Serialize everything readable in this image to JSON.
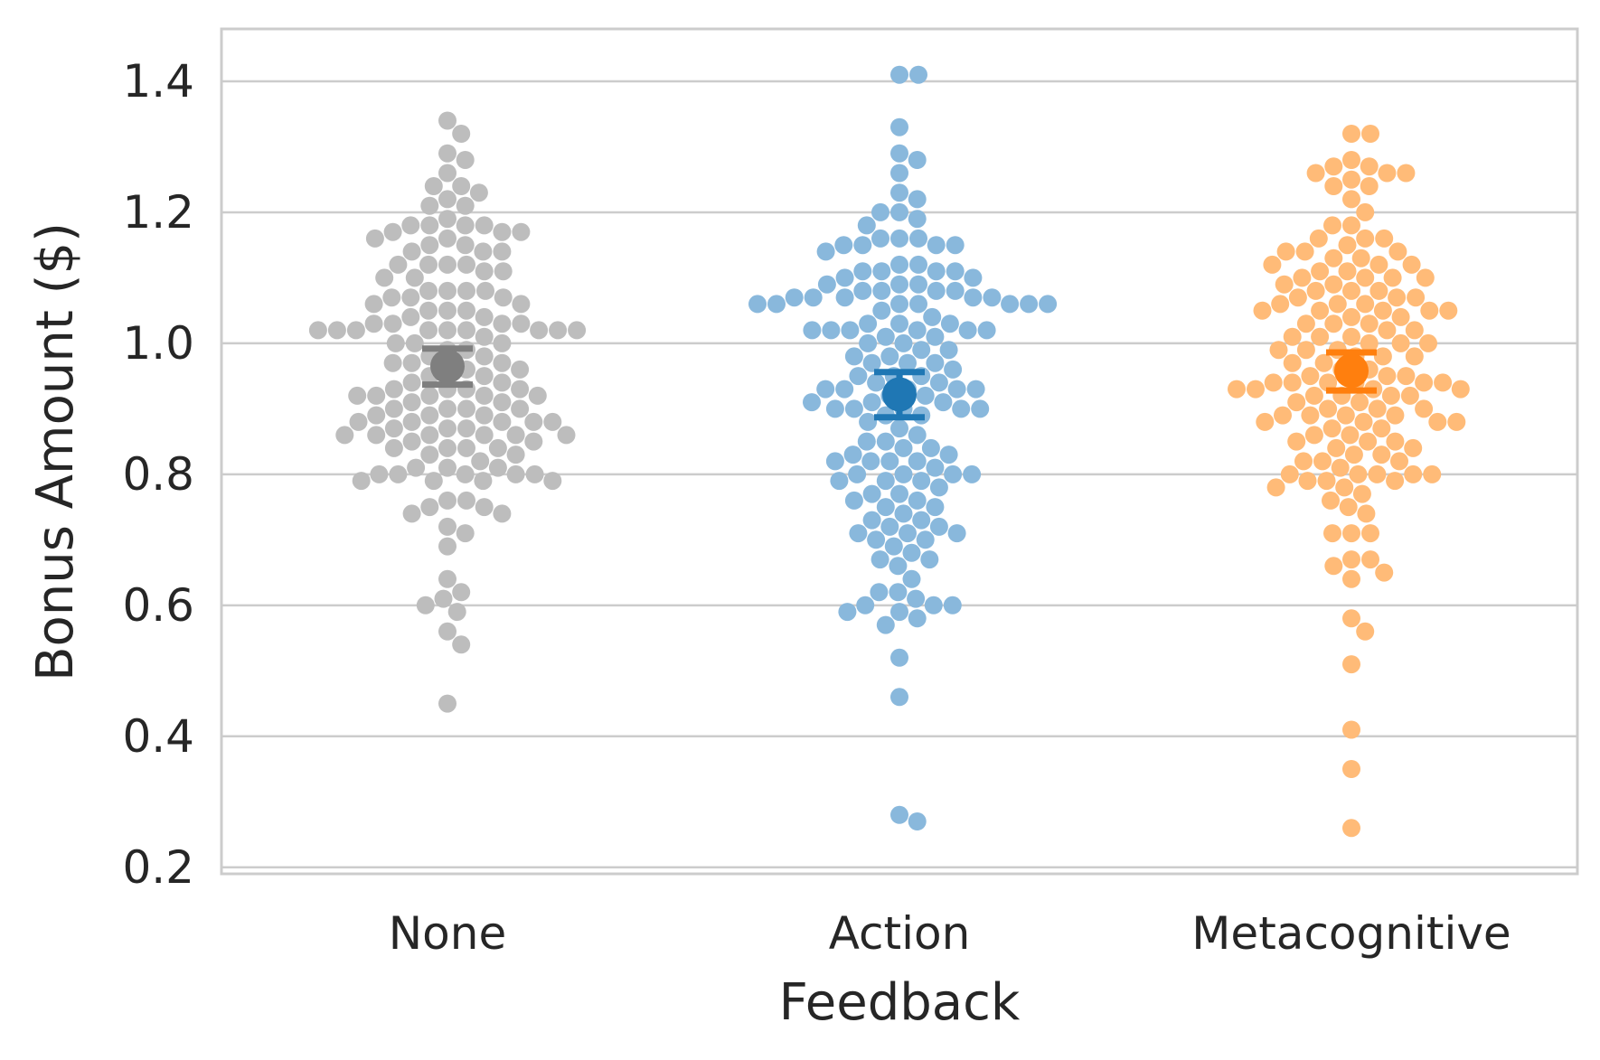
{
  "chart_data": {
    "type": "scatter",
    "subtype": "swarm",
    "title": "",
    "xlabel": "Feedback",
    "ylabel": "Bonus Amount ($)",
    "ylim": [
      0.19,
      1.48
    ],
    "yticks": [
      0.2,
      0.4,
      0.6,
      0.8,
      1.0,
      1.2,
      1.4
    ],
    "ytick_labels": [
      "0.2",
      "0.4",
      "0.6",
      "0.8",
      "1.0",
      "1.2",
      "1.4"
    ],
    "grid": "horizontal",
    "categories": [
      "None",
      "Action",
      "Metacognitive"
    ],
    "series": [
      {
        "category": "None",
        "point_color": "#bdbdbd",
        "mean_color": "#7f7f7f",
        "mean": 0.965,
        "ci": [
          0.937,
          0.992
        ],
        "values": [
          1.34,
          1.32,
          1.29,
          1.28,
          1.26,
          1.24,
          1.24,
          1.23,
          1.22,
          1.21,
          1.21,
          1.19,
          1.18,
          1.18,
          1.18,
          1.18,
          1.17,
          1.17,
          1.17,
          1.16,
          1.16,
          1.15,
          1.15,
          1.14,
          1.14,
          1.14,
          1.12,
          1.12,
          1.12,
          1.12,
          1.11,
          1.11,
          1.1,
          1.1,
          1.08,
          1.08,
          1.08,
          1.08,
          1.07,
          1.07,
          1.07,
          1.06,
          1.06,
          1.05,
          1.05,
          1.05,
          1.04,
          1.04,
          1.03,
          1.03,
          1.03,
          1.03,
          1.02,
          1.02,
          1.02,
          1.02,
          1.02,
          1.02,
          1.02,
          1.02,
          1.02,
          1.01,
          1.0,
          1.0,
          1.0,
          0.99,
          0.99,
          0.98,
          0.98,
          0.97,
          0.97,
          0.97,
          0.96,
          0.96,
          0.96,
          0.95,
          0.95,
          0.94,
          0.94,
          0.93,
          0.93,
          0.93,
          0.93,
          0.92,
          0.92,
          0.92,
          0.92,
          0.92,
          0.91,
          0.91,
          0.9,
          0.9,
          0.9,
          0.9,
          0.89,
          0.89,
          0.89,
          0.88,
          0.88,
          0.88,
          0.88,
          0.88,
          0.87,
          0.87,
          0.87,
          0.86,
          0.86,
          0.86,
          0.86,
          0.86,
          0.86,
          0.85,
          0.85,
          0.84,
          0.84,
          0.84,
          0.84,
          0.83,
          0.83,
          0.82,
          0.81,
          0.81,
          0.81,
          0.8,
          0.8,
          0.8,
          0.8,
          0.8,
          0.79,
          0.79,
          0.79,
          0.79,
          0.76,
          0.76,
          0.75,
          0.75,
          0.74,
          0.74,
          0.72,
          0.71,
          0.69,
          0.64,
          0.62,
          0.61,
          0.6,
          0.59,
          0.56,
          0.54,
          0.45
        ]
      },
      {
        "category": "Action",
        "point_color": "#89b8dc",
        "mean_color": "#1f77b4",
        "mean": 0.922,
        "ci": [
          0.887,
          0.956
        ],
        "values": [
          1.41,
          1.41,
          1.33,
          1.29,
          1.28,
          1.26,
          1.23,
          1.22,
          1.2,
          1.2,
          1.19,
          1.18,
          1.16,
          1.16,
          1.16,
          1.15,
          1.15,
          1.15,
          1.15,
          1.14,
          1.12,
          1.12,
          1.11,
          1.11,
          1.11,
          1.11,
          1.1,
          1.1,
          1.09,
          1.09,
          1.09,
          1.08,
          1.08,
          1.08,
          1.08,
          1.07,
          1.07,
          1.07,
          1.07,
          1.07,
          1.06,
          1.06,
          1.06,
          1.06,
          1.06,
          1.06,
          1.06,
          1.05,
          1.04,
          1.03,
          1.03,
          1.03,
          1.02,
          1.02,
          1.02,
          1.02,
          1.02,
          1.02,
          1.01,
          1.01,
          1.0,
          1.0,
          0.99,
          0.99,
          0.98,
          0.98,
          0.97,
          0.97,
          0.97,
          0.96,
          0.95,
          0.95,
          0.95,
          0.94,
          0.94,
          0.93,
          0.93,
          0.93,
          0.93,
          0.93,
          0.92,
          0.92,
          0.91,
          0.91,
          0.91,
          0.9,
          0.9,
          0.9,
          0.9,
          0.9,
          0.89,
          0.89,
          0.88,
          0.87,
          0.86,
          0.85,
          0.85,
          0.84,
          0.84,
          0.83,
          0.83,
          0.82,
          0.82,
          0.82,
          0.82,
          0.81,
          0.8,
          0.8,
          0.8,
          0.8,
          0.79,
          0.79,
          0.79,
          0.78,
          0.77,
          0.77,
          0.76,
          0.76,
          0.75,
          0.75,
          0.74,
          0.73,
          0.73,
          0.72,
          0.72,
          0.71,
          0.71,
          0.71,
          0.7,
          0.7,
          0.69,
          0.68,
          0.67,
          0.67,
          0.66,
          0.64,
          0.62,
          0.62,
          0.61,
          0.6,
          0.6,
          0.6,
          0.59,
          0.59,
          0.58,
          0.57,
          0.52,
          0.46,
          0.28,
          0.27
        ]
      },
      {
        "category": "Metacognitive",
        "point_color": "#ffbb78",
        "mean_color": "#ff7f0e",
        "mean": 0.958,
        "ci": [
          0.928,
          0.986
        ],
        "values": [
          1.32,
          1.32,
          1.28,
          1.27,
          1.27,
          1.26,
          1.26,
          1.26,
          1.25,
          1.24,
          1.24,
          1.22,
          1.2,
          1.18,
          1.18,
          1.16,
          1.16,
          1.16,
          1.15,
          1.14,
          1.14,
          1.14,
          1.13,
          1.13,
          1.12,
          1.12,
          1.12,
          1.11,
          1.11,
          1.1,
          1.1,
          1.1,
          1.1,
          1.09,
          1.09,
          1.08,
          1.08,
          1.08,
          1.07,
          1.07,
          1.07,
          1.06,
          1.06,
          1.06,
          1.05,
          1.05,
          1.05,
          1.05,
          1.05,
          1.04,
          1.04,
          1.03,
          1.03,
          1.03,
          1.02,
          1.02,
          1.01,
          1.01,
          1.01,
          1.0,
          1.0,
          1.0,
          0.99,
          0.99,
          0.99,
          0.98,
          0.98,
          0.98,
          0.97,
          0.97,
          0.96,
          0.96,
          0.95,
          0.95,
          0.95,
          0.94,
          0.94,
          0.94,
          0.94,
          0.94,
          0.94,
          0.93,
          0.93,
          0.93,
          0.93,
          0.92,
          0.92,
          0.92,
          0.92,
          0.91,
          0.91,
          0.9,
          0.9,
          0.9,
          0.89,
          0.89,
          0.89,
          0.89,
          0.88,
          0.88,
          0.88,
          0.88,
          0.87,
          0.87,
          0.86,
          0.86,
          0.85,
          0.85,
          0.85,
          0.84,
          0.84,
          0.83,
          0.83,
          0.82,
          0.82,
          0.82,
          0.81,
          0.8,
          0.8,
          0.8,
          0.8,
          0.8,
          0.79,
          0.79,
          0.79,
          0.78,
          0.78,
          0.77,
          0.76,
          0.75,
          0.74,
          0.71,
          0.71,
          0.71,
          0.67,
          0.67,
          0.66,
          0.65,
          0.64,
          0.58,
          0.56,
          0.51,
          0.41,
          0.35,
          0.26
        ]
      }
    ]
  },
  "colors": {
    "background": "#ffffff",
    "grid": "#cccccc",
    "text": "#262626"
  }
}
